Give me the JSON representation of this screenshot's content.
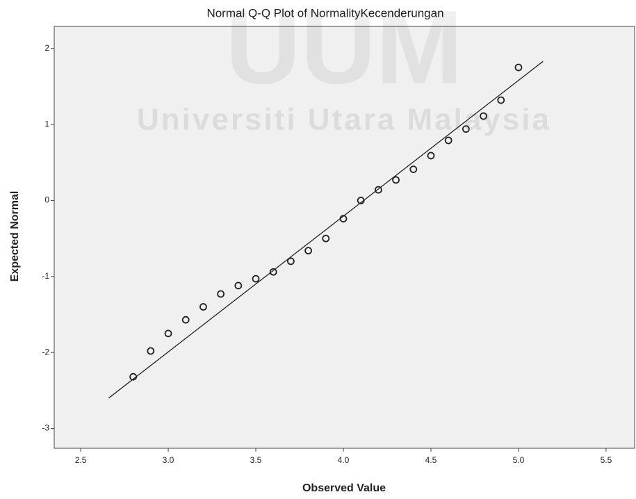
{
  "chart_data": {
    "type": "scatter",
    "title": "Normal Q-Q Plot of NormalityKecenderungan",
    "x_label": "Observed Value",
    "y_label": "Expected Normal",
    "watermark": [
      "UUM",
      "Universiti Utara Malaysia"
    ],
    "x": [
      2.8,
      2.9,
      3.0,
      3.1,
      3.2,
      3.3,
      3.4,
      3.5,
      3.6,
      3.7,
      3.8,
      3.9,
      4.0,
      4.1,
      4.2,
      4.3,
      4.4,
      4.5,
      4.6,
      4.7,
      4.8,
      4.9,
      5.0
    ],
    "values": [
      -2.32,
      -1.98,
      -1.75,
      -1.57,
      -1.4,
      -1.23,
      -1.12,
      -1.03,
      -0.94,
      -0.8,
      -0.66,
      -0.5,
      -0.24,
      0.0,
      0.14,
      0.27,
      0.41,
      0.59,
      0.79,
      0.94,
      1.11,
      1.32,
      1.75
    ],
    "reference_line": {
      "x": [
        2.66,
        5.14
      ],
      "y": [
        -2.6,
        1.83
      ]
    },
    "xlim": [
      2.349,
      5.663
    ],
    "ylim": [
      -3.26,
      2.29
    ],
    "xticks": [
      2.5,
      {
        "value": 3,
        "label": "3.0"
      },
      3.5,
      {
        "value": 4,
        "label": "4.0"
      },
      4.5,
      {
        "value": 5,
        "label": "5.0"
      },
      5.5
    ],
    "yticks": [
      -3,
      -2,
      -1,
      0,
      1,
      2
    ],
    "color": "#222222",
    "plot_background": "#f0f0f0",
    "grid": false
  }
}
